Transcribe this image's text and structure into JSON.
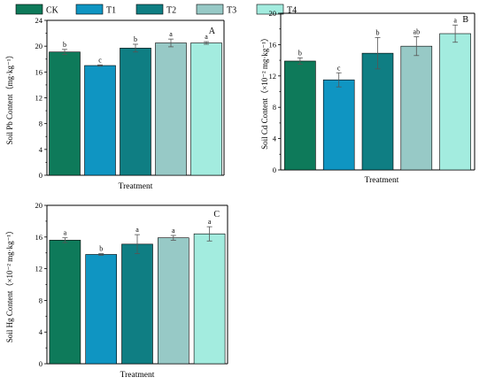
{
  "colors": {
    "CK": "#0e7a5a",
    "T1": "#0f95c2",
    "T2": "#0f7e83",
    "T3": "#97c9c6",
    "T4": "#a3ecdf"
  },
  "legend": [
    {
      "name": "CK",
      "color": "#0e7a5a"
    },
    {
      "name": "T1",
      "color": "#0f95c2"
    },
    {
      "name": "T2",
      "color": "#0f7e83"
    },
    {
      "name": "T3",
      "color": "#97c9c6"
    },
    {
      "name": "T4",
      "color": "#a3ecdf"
    }
  ],
  "chart_data": [
    {
      "type": "bar",
      "panel": "A",
      "categories": [
        "CK",
        "T1",
        "T2",
        "T3",
        "T4"
      ],
      "values": [
        19.1,
        17.0,
        19.7,
        20.5,
        20.5
      ],
      "errors": [
        0.4,
        0.1,
        0.6,
        0.6,
        0.2
      ],
      "significance": [
        "b",
        "c",
        "b",
        "a",
        "a"
      ],
      "xlabel": "Treatment",
      "ylabel": "Soil Pb Content（mg·kg⁻¹）",
      "ylim": [
        0,
        24
      ],
      "yticks": [
        0,
        4,
        8,
        12,
        16,
        20,
        24
      ]
    },
    {
      "type": "bar",
      "panel": "B",
      "categories": [
        "CK",
        "T1",
        "T2",
        "T3",
        "T4"
      ],
      "values": [
        13.9,
        11.5,
        14.9,
        15.8,
        17.4
      ],
      "errors": [
        0.4,
        0.9,
        2.0,
        1.2,
        1.1
      ],
      "significance": [
        "b",
        "c",
        "b",
        "ab",
        "a"
      ],
      "xlabel": "Treatment",
      "ylabel": "Soil Cd Content（×10⁻² mg·kg⁻¹）",
      "ylim": [
        0,
        20
      ],
      "yticks": [
        0,
        4,
        8,
        12,
        16,
        20
      ]
    },
    {
      "type": "bar",
      "panel": "C",
      "categories": [
        "CK",
        "T1",
        "T2",
        "T3",
        "T4"
      ],
      "values": [
        15.6,
        13.8,
        15.1,
        15.9,
        16.4
      ],
      "errors": [
        0.3,
        0.1,
        1.2,
        0.3,
        0.9
      ],
      "significance": [
        "a",
        "b",
        "a",
        "a",
        "a"
      ],
      "xlabel": "Treatment",
      "ylabel": "Soil Hg Content（×10⁻² mg·kg⁻¹）",
      "ylim": [
        0,
        20
      ],
      "yticks": [
        0,
        4,
        8,
        12,
        16,
        20
      ]
    }
  ]
}
